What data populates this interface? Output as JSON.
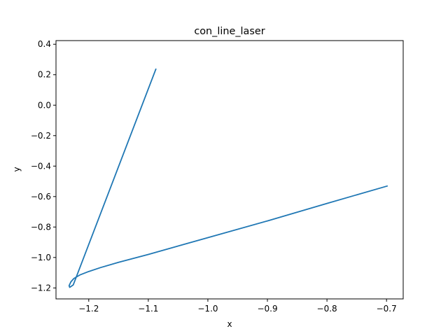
{
  "chart_data": {
    "type": "line",
    "title": "con_line_laser",
    "xlabel": "x",
    "ylabel": "y",
    "xlim": [
      -1.255,
      -0.672
    ],
    "ylim": [
      -1.272,
      0.424
    ],
    "x_ticks": [
      -1.2,
      -1.1,
      -1.0,
      -0.9,
      -0.8,
      -0.7
    ],
    "x_tick_labels": [
      "−1.2",
      "−1.1",
      "−1.0",
      "−0.9",
      "−0.8",
      "−0.7"
    ],
    "y_ticks": [
      -1.2,
      -1.0,
      -0.8,
      -0.6,
      -0.4,
      -0.2,
      0.0,
      0.2,
      0.4
    ],
    "y_tick_labels": [
      "−1.2",
      "−1.0",
      "−0.8",
      "−0.6",
      "−0.4",
      "−0.2",
      "0.0",
      "0.2",
      "0.4"
    ],
    "grid": false,
    "series": [
      {
        "color": "#1f77b4",
        "x": [
          -1.087,
          -1.226,
          -1.232,
          -1.233,
          -1.23,
          -1.225,
          -1.215,
          -1.2,
          -1.18,
          -1.15,
          -1.1,
          -1.0,
          -0.9,
          -0.8,
          -0.698
        ],
        "y": [
          0.24,
          -1.18,
          -1.196,
          -1.185,
          -1.16,
          -1.138,
          -1.115,
          -1.092,
          -1.066,
          -1.032,
          -0.98,
          -0.87,
          -0.76,
          -0.645,
          -0.53
        ]
      }
    ]
  }
}
